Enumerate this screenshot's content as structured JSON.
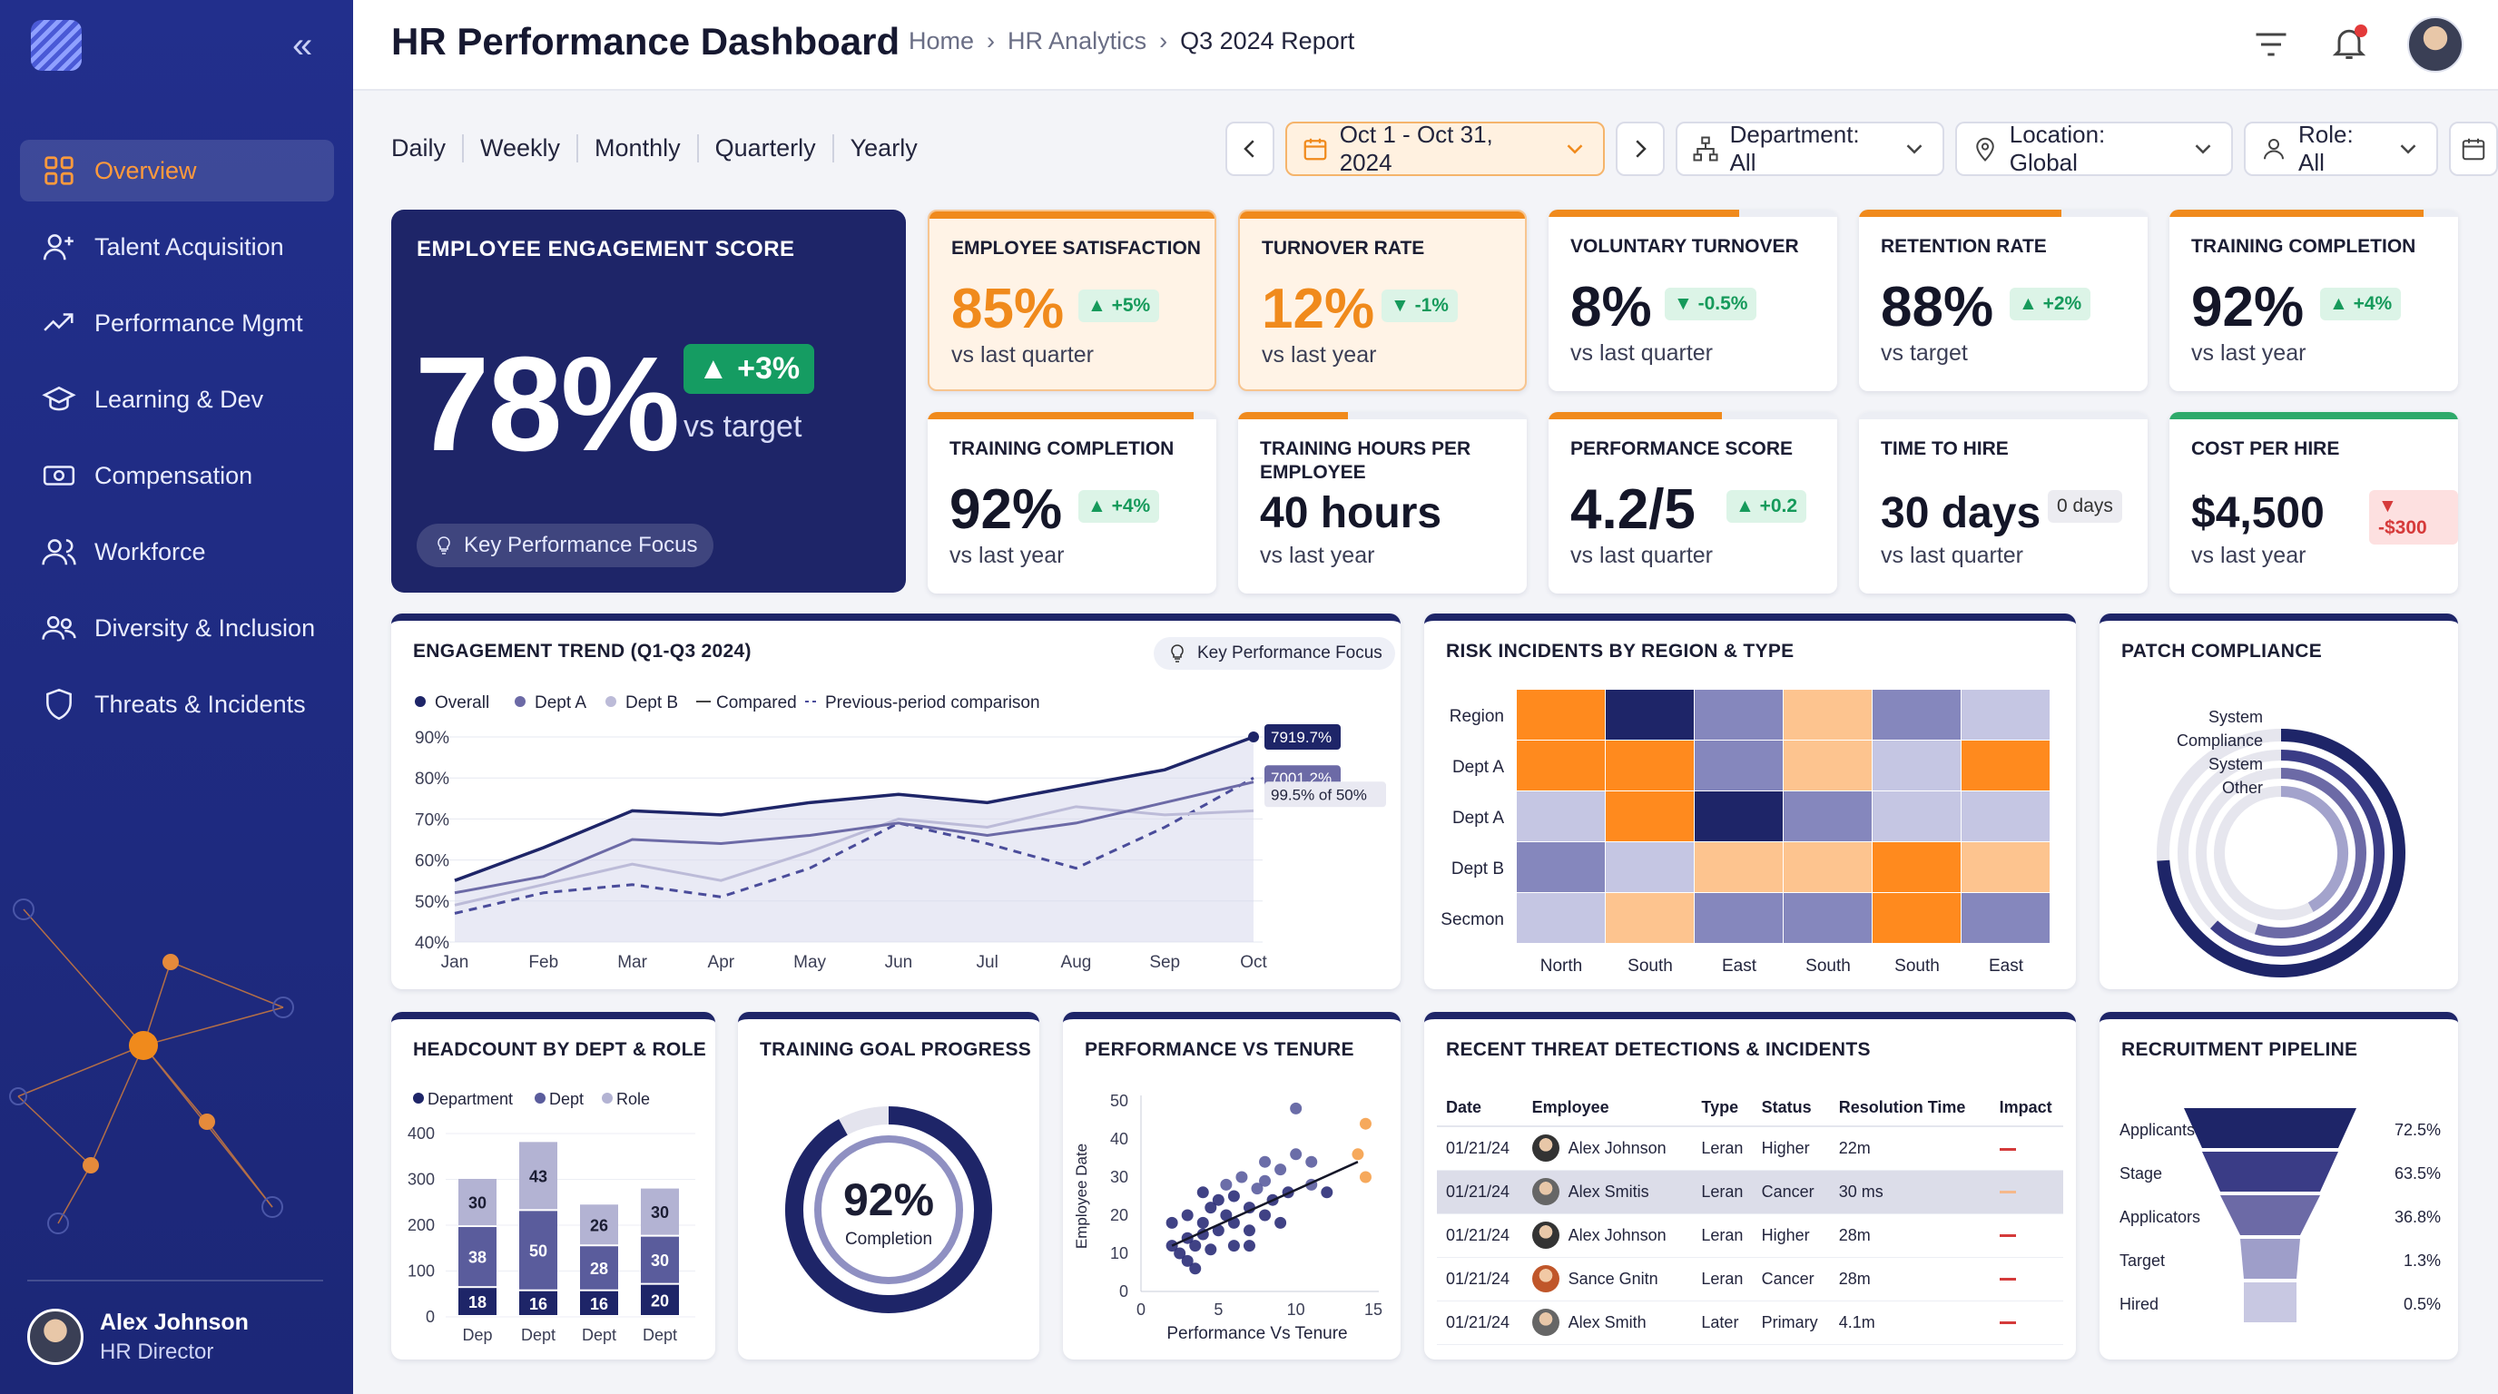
{
  "app": {
    "title": "HR Performance Dashboard"
  },
  "breadcrumb": [
    "Home",
    "HR Analytics",
    "Q3 2024 Report"
  ],
  "colors": {
    "navy": "#1e2568",
    "orange": "#f08a1c",
    "sidebar": "#222f8c",
    "green": "#169a5b",
    "red": "#d63a3a"
  },
  "sidebar": {
    "items": [
      {
        "label": "Overview",
        "icon": "grid-icon",
        "active": true
      },
      {
        "label": "Talent Acquisition",
        "icon": "user-plus-icon"
      },
      {
        "label": "Performance Mgmt",
        "icon": "trend-icon"
      },
      {
        "label": "Learning & Dev",
        "icon": "graduation-cap-icon"
      },
      {
        "label": "Compensation",
        "icon": "money-icon"
      },
      {
        "label": "Workforce",
        "icon": "users-icon"
      },
      {
        "label": "Diversity & Inclusion",
        "icon": "people-icon"
      },
      {
        "label": "Threats & Incidents",
        "icon": "shield-icon"
      }
    ],
    "user": {
      "name": "Alex Johnson",
      "role": "HR Director"
    }
  },
  "periods": [
    "Daily",
    "Weekly",
    "Monthly",
    "Quarterly",
    "Yearly"
  ],
  "filters": {
    "date_range": "Oct 1 - Oct 31, 2024",
    "department": "Department: All",
    "location": "Location: Global",
    "role": "Role: All"
  },
  "engagement": {
    "title": "EMPLOYEE ENGAGEMENT SCORE",
    "value": "78%",
    "delta": "▲ +3%",
    "sub": "vs target",
    "pill": "Key Performance Focus"
  },
  "kpis": [
    {
      "title": "EMPLOYEE SATISFACTION",
      "value": "85%",
      "delta": "▲ +5%",
      "sub": "vs last quarter",
      "progress": 1.0
    },
    {
      "title": "TURNOVER RATE",
      "value": "12%",
      "delta": "▼ -1%",
      "sub": "vs last year",
      "progress": 1.0
    },
    {
      "title": "VOLUNTARY TURNOVER",
      "value": "8%",
      "delta": "▼ -0.5%",
      "sub": "vs last quarter",
      "progress": 0.66
    },
    {
      "title": "RETENTION RATE",
      "value": "88%",
      "delta": "▲ +2%",
      "sub": "vs target",
      "progress": 0.7
    },
    {
      "title": "TRAINING COMPLETION",
      "value": "92%",
      "delta": "▲ +4%",
      "sub": "vs last year",
      "progress": 0.88
    },
    {
      "title": "TRAINING COMPLETION",
      "value": "92%",
      "delta": "▲ +4%",
      "sub": "vs last year",
      "progress": 0.92
    },
    {
      "title": "TRAINING HOURS PER EMPLOYEE",
      "value": "40 hours",
      "delta": "",
      "sub": "vs last year",
      "progress": 0.38
    },
    {
      "title": "PERFORMANCE SCORE",
      "value": "4.2/5",
      "delta": "▲ +0.2",
      "sub": "vs last quarter",
      "progress": 0.6
    },
    {
      "title": "TIME TO HIRE",
      "value": "30 days",
      "delta": "0 days",
      "sub": "vs last quarter",
      "progress": 0.0
    },
    {
      "title": "COST PER HIRE",
      "value": "$4,500",
      "delta": "▼ -$300",
      "sub": "vs last year",
      "progress": 1.0
    }
  ],
  "trend": {
    "title": "ENGAGEMENT TREND (Q1-Q3 2024)",
    "pill": "Key Performance Focus",
    "legend": [
      "Overall",
      "Dept A",
      "Dept B",
      "Compared",
      "Previous-period comparison"
    ],
    "callouts": [
      "7919.7%",
      "7001.2%",
      "99.5% of 50%"
    ]
  },
  "heatmap": {
    "title": "RISK INCIDENTS BY REGION & TYPE",
    "rows": [
      "Region",
      "Dept A",
      "Dept A",
      "Dept B",
      "Secmon"
    ],
    "cols": [
      "North",
      "South",
      "East",
      "South",
      "South",
      "East"
    ]
  },
  "patch": {
    "title": "PATCH COMPLIANCE",
    "labels": [
      "System",
      "Compliance",
      "System",
      "Other"
    ]
  },
  "headcount": {
    "title": "HEADCOUNT BY DEPT & ROLE",
    "legend": [
      "Department",
      "Dept",
      "Role"
    ]
  },
  "training_goal": {
    "title": "TRAINING GOAL PROGRESS",
    "value": "92%",
    "label": "Completion"
  },
  "perf_tenure": {
    "title": "PERFORMANCE VS TENURE"
  },
  "threats": {
    "title": "RECENT THREAT DETECTIONS & INCIDENTS",
    "headers": [
      "Date",
      "Employee",
      "Type",
      "Status",
      "Resolution Time",
      "Impact"
    ],
    "rows": [
      {
        "date": "01/21/24",
        "employee": "Alex Johnson",
        "type": "Leran",
        "status": "Higher",
        "time": "22m"
      },
      {
        "date": "01/21/24",
        "employee": "Alex Smitis",
        "type": "Leran",
        "status": "Cancer",
        "time": "30 ms"
      },
      {
        "date": "01/21/24",
        "employee": "Alex Johnson",
        "type": "Leran",
        "status": "Higher",
        "time": "28m"
      },
      {
        "date": "01/21/24",
        "employee": "Sance Gnitn",
        "type": "Leran",
        "status": "Cancer",
        "time": "28m"
      },
      {
        "date": "01/21/24",
        "employee": "Alex Smith",
        "type": "Later",
        "status": "Primary",
        "time": "4.1m"
      }
    ]
  },
  "pipeline": {
    "title": "RECRUITMENT PIPELINE"
  },
  "chart_data": [
    {
      "type": "line",
      "title": "ENGAGEMENT TREND (Q1-Q3 2024)",
      "categories": [
        "Jan",
        "Feb",
        "Mar",
        "Apr",
        "May",
        "Jun",
        "Jul",
        "Aug",
        "Sep",
        "Oct"
      ],
      "ylim": [
        40,
        90
      ],
      "yticks": [
        "40%",
        "50%",
        "60%",
        "70%",
        "80%",
        "90%"
      ],
      "series": [
        {
          "name": "Overall",
          "values": [
            55,
            63,
            72,
            71,
            74,
            76,
            74,
            78,
            82,
            90
          ],
          "color": "#1e2568"
        },
        {
          "name": "Dept A",
          "values": [
            52,
            56,
            65,
            64,
            66,
            69,
            66,
            69,
            74,
            79
          ],
          "color": "#6c6aa6"
        },
        {
          "name": "Dept B",
          "values": [
            49,
            54,
            59,
            55,
            62,
            70,
            68,
            73,
            71,
            72
          ],
          "color": "#bcbbd8"
        },
        {
          "name": "Previous-period comparison",
          "values": [
            47,
            52,
            54,
            51,
            58,
            69,
            64,
            58,
            68,
            80
          ],
          "color": "#4a4c9a",
          "dashed": true
        }
      ]
    },
    {
      "type": "heatmap",
      "title": "RISK INCIDENTS BY REGION & TYPE",
      "rows": [
        "Region",
        "Dept A",
        "Dept A",
        "Dept B",
        "Secmon"
      ],
      "cols": [
        "North",
        "South",
        "East",
        "South",
        "South",
        "East"
      ],
      "values": [
        [
          4,
          5,
          2,
          3,
          2,
          1
        ],
        [
          4,
          4,
          2,
          3,
          1,
          4
        ],
        [
          1,
          4,
          5,
          2,
          1,
          1
        ],
        [
          2,
          1,
          3,
          3,
          4,
          3
        ],
        [
          1,
          3,
          2,
          2,
          4,
          2
        ]
      ]
    },
    {
      "type": "bar",
      "title": "HEADCOUNT BY DEPT & ROLE",
      "categories": [
        "Dep",
        "Dept",
        "Dept",
        "Dept"
      ],
      "ylim": [
        0,
        400
      ],
      "yticks": [
        "0",
        "100",
        "200",
        "300",
        "400"
      ],
      "series": [
        {
          "name": "Department",
          "values": [
            18,
            16,
            16,
            20
          ],
          "color": "#1e2568"
        },
        {
          "name": "Dept",
          "values": [
            38,
            50,
            28,
            30
          ],
          "color": "#5a5c9c"
        },
        {
          "name": "Role",
          "values": [
            30,
            43,
            26,
            30
          ],
          "color": "#b3b3d3"
        }
      ]
    },
    {
      "type": "scatter",
      "title": "PERFORMANCE VS TENURE",
      "xlabel": "Performance Vs Tenure",
      "ylabel": "Employee Date",
      "xlim": [
        0,
        15
      ],
      "ylim": [
        0,
        50
      ],
      "xticks": [
        "0",
        "5",
        "10",
        "15"
      ],
      "yticks": [
        "0",
        "10",
        "20",
        "30",
        "40",
        "50"
      ],
      "points": [
        [
          2,
          12
        ],
        [
          2.5,
          10
        ],
        [
          3,
          14
        ],
        [
          3,
          8
        ],
        [
          3.5,
          12
        ],
        [
          3.5,
          6
        ],
        [
          4,
          15
        ],
        [
          4,
          18
        ],
        [
          4.5,
          22
        ],
        [
          4.5,
          11
        ],
        [
          5,
          24
        ],
        [
          5,
          16
        ],
        [
          5.5,
          28
        ],
        [
          5.5,
          20
        ],
        [
          6,
          25
        ],
        [
          6,
          18
        ],
        [
          6.5,
          30
        ],
        [
          7,
          22
        ],
        [
          7,
          12
        ],
        [
          7.5,
          27
        ],
        [
          8,
          20
        ],
        [
          8,
          34
        ],
        [
          8.5,
          24
        ],
        [
          9,
          32
        ],
        [
          9,
          18
        ],
        [
          9.5,
          26
        ],
        [
          10,
          36
        ],
        [
          10,
          48
        ],
        [
          11,
          34
        ],
        [
          12,
          26
        ],
        [
          14,
          36
        ],
        [
          14.5,
          30
        ],
        [
          14.5,
          44
        ],
        [
          2,
          18
        ],
        [
          3,
          20
        ],
        [
          4,
          26
        ],
        [
          6,
          12
        ],
        [
          7,
          16
        ],
        [
          8,
          29
        ],
        [
          11,
          28
        ]
      ],
      "trend": [
        [
          2,
          12
        ],
        [
          14,
          34
        ]
      ]
    },
    {
      "type": "bar",
      "title": "RECRUITMENT PIPELINE",
      "categories": [
        "Applicants",
        "Stage",
        "Applicators",
        "Target",
        "Hired"
      ],
      "values": [
        72.5,
        63.5,
        36.8,
        1.3,
        0.5
      ],
      "labels": [
        "72.5%",
        "63.5%",
        "36.8%",
        "1.3%",
        "0.5%"
      ]
    },
    {
      "type": "pie",
      "title": "TRAINING GOAL PROGRESS",
      "values": [
        92,
        8
      ],
      "labels": [
        "Completion",
        ""
      ]
    }
  ]
}
